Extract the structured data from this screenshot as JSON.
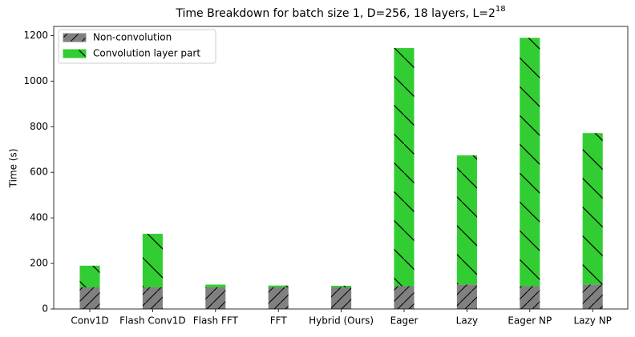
{
  "chart_data": {
    "type": "stacked_bar",
    "title": "Time Breakdown for batch size 1, D=256, 18 layers, L=2",
    "title_superscript": "18",
    "y_label": "Time (s)",
    "categories": [
      "Conv1D",
      "Flash Conv1D",
      "Flash FFT",
      "FFT",
      "Hybrid (Ours)",
      "Eager",
      "Lazy",
      "Eager NP",
      "Lazy NP"
    ],
    "series": [
      {
        "name": "Non-convolution",
        "color": "#808080",
        "values": [
          95,
          95,
          95,
          95,
          95,
          100,
          108,
          100,
          108
        ]
      },
      {
        "name": "Convolution layer part",
        "color": "#32cd32",
        "values": [
          95,
          235,
          12,
          8,
          7,
          1045,
          566,
          1090,
          664
        ]
      }
    ],
    "ylim": [
      0,
      1240
    ],
    "yticks": [
      0,
      200,
      400,
      600,
      800,
      1000,
      1200
    ],
    "legend": "upper left"
  }
}
